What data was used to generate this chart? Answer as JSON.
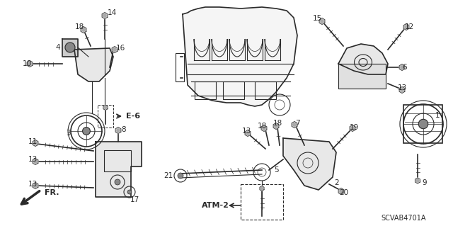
{
  "bg_color": "#ffffff",
  "line_color": "#2a2a2a",
  "figwidth": 6.4,
  "figheight": 3.19,
  "dpi": 100,
  "diagram_code": "SCVAB4701A"
}
